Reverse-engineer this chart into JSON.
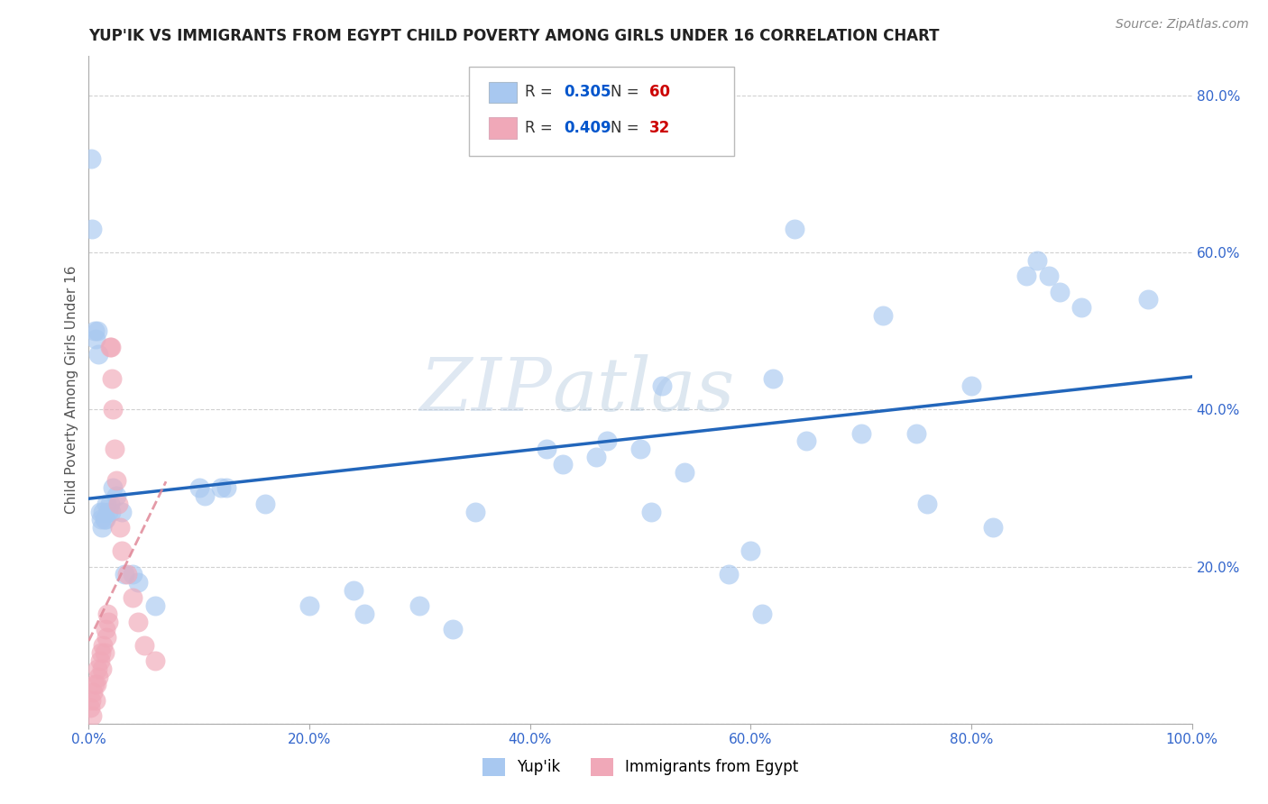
{
  "title": "YUP'IK VS IMMIGRANTS FROM EGYPT CHILD POVERTY AMONG GIRLS UNDER 16 CORRELATION CHART",
  "source": "Source: ZipAtlas.com",
  "ylabel": "Child Poverty Among Girls Under 16",
  "background_color": "#ffffff",
  "grid_color": "#cccccc",
  "yupik_color": "#a8c8f0",
  "egypt_color": "#f0a8b8",
  "yupik_line_color": "#2266bb",
  "egypt_line_color": "#e08898",
  "yupik_R": 0.305,
  "yupik_N": 60,
  "egypt_R": 0.409,
  "egypt_N": 32,
  "legend_R_color": "#0055cc",
  "legend_N_color": "#cc0000",
  "watermark_zip": "ZIP",
  "watermark_atlas": "atlas",
  "yupik_points": [
    [
      0.002,
      0.72
    ],
    [
      0.003,
      0.63
    ],
    [
      0.005,
      0.5
    ],
    [
      0.006,
      0.49
    ],
    [
      0.008,
      0.5
    ],
    [
      0.009,
      0.47
    ],
    [
      0.01,
      0.27
    ],
    [
      0.011,
      0.26
    ],
    [
      0.012,
      0.25
    ],
    [
      0.013,
      0.27
    ],
    [
      0.014,
      0.26
    ],
    [
      0.015,
      0.26
    ],
    [
      0.016,
      0.28
    ],
    [
      0.018,
      0.27
    ],
    [
      0.019,
      0.28
    ],
    [
      0.02,
      0.27
    ],
    [
      0.022,
      0.3
    ],
    [
      0.025,
      0.29
    ],
    [
      0.03,
      0.27
    ],
    [
      0.032,
      0.19
    ],
    [
      0.04,
      0.19
    ],
    [
      0.045,
      0.18
    ],
    [
      0.06,
      0.15
    ],
    [
      0.1,
      0.3
    ],
    [
      0.105,
      0.29
    ],
    [
      0.12,
      0.3
    ],
    [
      0.125,
      0.3
    ],
    [
      0.16,
      0.28
    ],
    [
      0.2,
      0.15
    ],
    [
      0.24,
      0.17
    ],
    [
      0.25,
      0.14
    ],
    [
      0.3,
      0.15
    ],
    [
      0.33,
      0.12
    ],
    [
      0.35,
      0.27
    ],
    [
      0.415,
      0.35
    ],
    [
      0.43,
      0.33
    ],
    [
      0.46,
      0.34
    ],
    [
      0.47,
      0.36
    ],
    [
      0.5,
      0.35
    ],
    [
      0.51,
      0.27
    ],
    [
      0.52,
      0.43
    ],
    [
      0.54,
      0.32
    ],
    [
      0.58,
      0.19
    ],
    [
      0.6,
      0.22
    ],
    [
      0.61,
      0.14
    ],
    [
      0.62,
      0.44
    ],
    [
      0.64,
      0.63
    ],
    [
      0.65,
      0.36
    ],
    [
      0.7,
      0.37
    ],
    [
      0.72,
      0.52
    ],
    [
      0.75,
      0.37
    ],
    [
      0.76,
      0.28
    ],
    [
      0.8,
      0.43
    ],
    [
      0.82,
      0.25
    ],
    [
      0.85,
      0.57
    ],
    [
      0.86,
      0.59
    ],
    [
      0.87,
      0.57
    ],
    [
      0.88,
      0.55
    ],
    [
      0.9,
      0.53
    ],
    [
      0.96,
      0.54
    ]
  ],
  "egypt_points": [
    [
      0.001,
      0.02
    ],
    [
      0.002,
      0.03
    ],
    [
      0.003,
      0.01
    ],
    [
      0.004,
      0.04
    ],
    [
      0.005,
      0.05
    ],
    [
      0.006,
      0.03
    ],
    [
      0.007,
      0.05
    ],
    [
      0.008,
      0.07
    ],
    [
      0.009,
      0.06
    ],
    [
      0.01,
      0.08
    ],
    [
      0.011,
      0.09
    ],
    [
      0.012,
      0.07
    ],
    [
      0.013,
      0.1
    ],
    [
      0.014,
      0.09
    ],
    [
      0.015,
      0.12
    ],
    [
      0.016,
      0.11
    ],
    [
      0.017,
      0.14
    ],
    [
      0.018,
      0.13
    ],
    [
      0.019,
      0.48
    ],
    [
      0.02,
      0.48
    ],
    [
      0.021,
      0.44
    ],
    [
      0.022,
      0.4
    ],
    [
      0.023,
      0.35
    ],
    [
      0.025,
      0.31
    ],
    [
      0.027,
      0.28
    ],
    [
      0.028,
      0.25
    ],
    [
      0.03,
      0.22
    ],
    [
      0.035,
      0.19
    ],
    [
      0.04,
      0.16
    ],
    [
      0.045,
      0.13
    ],
    [
      0.05,
      0.1
    ],
    [
      0.06,
      0.08
    ]
  ],
  "xlim": [
    0.0,
    1.0
  ],
  "ylim": [
    0.0,
    0.85
  ],
  "xticks": [
    0.0,
    0.2,
    0.4,
    0.6,
    0.8,
    1.0
  ],
  "yticks": [
    0.0,
    0.2,
    0.4,
    0.6,
    0.8
  ],
  "xtick_labels": [
    "0.0%",
    "20.0%",
    "40.0%",
    "60.0%",
    "80.0%",
    "100.0%"
  ],
  "ytick_labels": [
    "",
    "20.0%",
    "40.0%",
    "60.0%",
    "80.0%"
  ]
}
